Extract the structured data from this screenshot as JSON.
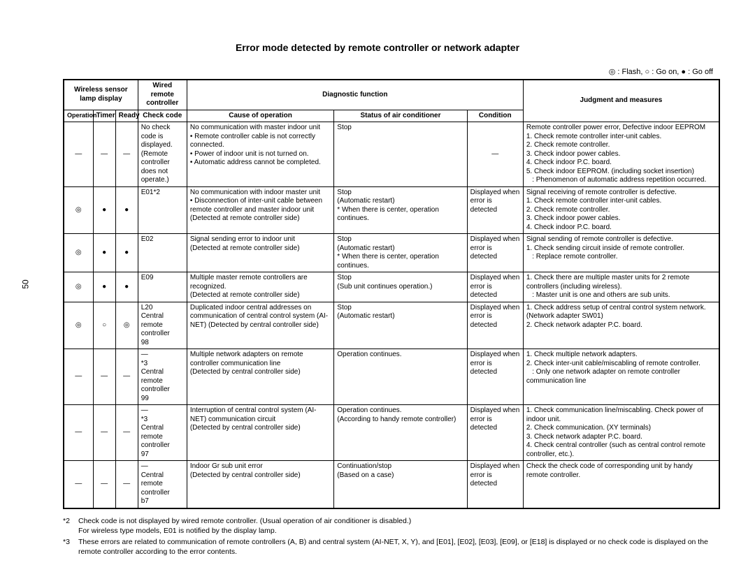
{
  "page_number": "50",
  "title": "Error mode detected by remote controller or network adapter",
  "legend": "◎ : Flash, ○ : Go on, ● : Go off",
  "symbols": {
    "flash": "◎",
    "go_on": "○",
    "go_off": "●",
    "dash": "—"
  },
  "headers": {
    "wireless_sensor": "Wireless sensor lamp display",
    "wired_remote": "Wired remote controller",
    "diagnostic": "Diagnostic function",
    "judgment": "Judgment and measures",
    "operation": "Operation",
    "timer": "Timer",
    "ready": "Ready",
    "check_code": "Check code",
    "cause": "Cause of operation",
    "status": "Status of air conditioner",
    "condition": "Condition"
  },
  "rows": [
    {
      "op": "—",
      "tm": "—",
      "rd": "—",
      "code": "No check code is displayed. (Remote controller does not operate.)",
      "cause": "No communication with master indoor unit\n• Remote controller cable is not correctly connected.\n• Power of indoor unit is not turned on.\n• Automatic address cannot be completed.",
      "status": "Stop",
      "cond": "—",
      "judge": "Remote controller power error, Defective indoor EEPROM\n1. Check remote controller inter-unit cables.\n2. Check remote controller.\n3. Check indoor power cables.\n4. Check indoor P.C. board.\n5. Check indoor EEPROM. (including socket insertion)\n   : Phenomenon of automatic address repetition occurred."
    },
    {
      "op": "◎",
      "tm": "●",
      "rd": "●",
      "code": "E01*2",
      "cause": "No communication with indoor master unit\n• Disconnection of inter-unit cable between remote controller and master indoor unit (Detected at remote controller side)",
      "status": "Stop\n(Automatic restart)\n* When there is center, operation continues.",
      "cond": "Displayed when error is detected",
      "judge": "Signal receiving of remote controller is defective.\n1. Check remote controller inter-unit cables.\n2. Check remote controller.\n3. Check indoor power cables.\n4. Check indoor P.C. board."
    },
    {
      "op": "◎",
      "tm": "●",
      "rd": "●",
      "code": "E02",
      "cause": "Signal sending error to indoor unit\n(Detected at remote controller side)",
      "status": "Stop\n(Automatic restart)\n* When there is center, operation continues.",
      "cond": "Displayed when error is detected",
      "judge": "Signal sending of remote controller is defective.\n1. Check sending circuit inside of remote controller.\n   : Replace remote controller."
    },
    {
      "op": "◎",
      "tm": "●",
      "rd": "●",
      "code": "E09",
      "cause": "Multiple master remote controllers are recognized.\n(Detected at remote controller side)",
      "status": "Stop\n(Sub unit continues operation.)",
      "cond": "Displayed when error is detected",
      "judge": "1. Check there are multiple master units for 2 remote controllers (including wireless).\n   : Master unit is one and others are sub units."
    },
    {
      "op": "◎",
      "tm": "○",
      "rd": "◎",
      "code": "L20\nCentral remote controller\n98",
      "cause": "Duplicated indoor central addresses on communication of central control system (AI-NET) (Detected by central controller side)",
      "status": "Stop\n(Automatic restart)",
      "cond": "Displayed when error is detected",
      "judge": "1. Check address setup of central control system network. (Network adapter SW01)\n2. Check network adapter P.C. board."
    },
    {
      "op": "—",
      "tm": "—",
      "rd": "—",
      "code": "—\n*3\nCentral remote controller\n99",
      "cause": "Multiple network adapters on remote controller communication line\n(Detected by central controller side)",
      "status": "Operation continues.",
      "cond": "Displayed when error is detected",
      "judge": "1. Check multiple network adapters.\n2. Check inter-unit cable/miscabling of remote controller.\n   : Only one network adapter on remote controller communication line"
    },
    {
      "op": "—",
      "tm": "—",
      "rd": "—",
      "code": "—\n*3\nCentral remote controller\n97",
      "cause": "Interruption of central control system (AI-NET) communication circuit\n(Detected by central controller side)",
      "status": "Operation continues.\n(According to handy remote controller)",
      "cond": "Displayed when error is detected",
      "judge": "1. Check communication line/miscabling. Check power of indoor unit.\n2. Check communication. (XY terminals)\n3. Check network adapter P.C. board.\n4. Check central controller (such as central control remote controller, etc.)."
    },
    {
      "op": "—",
      "tm": "—",
      "rd": "—",
      "code": "—\nCentral remote controller\nb7",
      "cause": "Indoor Gr sub unit error\n(Detected by central controller side)",
      "status": "Continuation/stop\n(Based on a case)",
      "cond": "Displayed when error is detected",
      "judge": "Check the check code of corresponding unit by handy remote controller."
    }
  ],
  "footnotes": [
    {
      "mark": "*2",
      "text": "Check code is not displayed by wired remote controller. (Usual operation of air conditioner is disabled.)\nFor wireless type models, E01 is notified by the display lamp."
    },
    {
      "mark": "*3",
      "text": "These errors are related to communication of remote controllers (A, B) and central system (AI-NET, X, Y), and [E01], [E02], [E03], [E09], or [E18] is displayed or no check code is displayed on the remote controller according to the error contents."
    }
  ]
}
